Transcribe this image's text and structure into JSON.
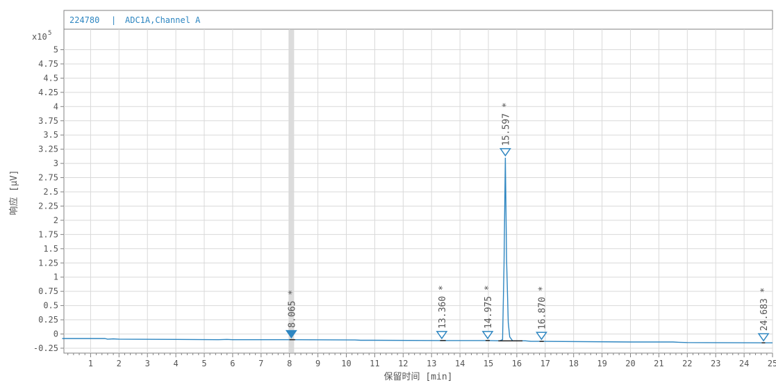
{
  "chart_data": {
    "type": "line",
    "header": {
      "sample_id": "224780",
      "separator": "|",
      "channel": "ADC1A,Channel A"
    },
    "xlabel": "保留时间 [min]",
    "ylabel": "响应 [µV]",
    "y_multiplier": "x10",
    "y_exponent": "5",
    "xlim": [
      0,
      25
    ],
    "ylim": [
      -0.3,
      5.2
    ],
    "x_ticks": [
      1,
      2,
      3,
      4,
      5,
      6,
      7,
      8,
      9,
      10,
      11,
      12,
      13,
      14,
      15,
      16,
      17,
      18,
      19,
      20,
      21,
      22,
      23,
      24,
      25
    ],
    "y_ticks": [
      {
        "v": 5,
        "label": "5"
      },
      {
        "v": 4.75,
        "label": "4.75"
      },
      {
        "v": 4.5,
        "label": "4.5"
      },
      {
        "v": 4.25,
        "label": "4.25"
      },
      {
        "v": 4,
        "label": "4"
      },
      {
        "v": 3.75,
        "label": "3.75"
      },
      {
        "v": 3.5,
        "label": "3.5"
      },
      {
        "v": 3.25,
        "label": "3.25"
      },
      {
        "v": 3,
        "label": "3"
      },
      {
        "v": 2.75,
        "label": "2.75"
      },
      {
        "v": 2.5,
        "label": "2.5"
      },
      {
        "v": 2.25,
        "label": "2.25"
      },
      {
        "v": 2,
        "label": "2"
      },
      {
        "v": 1.75,
        "label": "1.75"
      },
      {
        "v": 1.5,
        "label": "1.5"
      },
      {
        "v": 1.25,
        "label": "1.25"
      },
      {
        "v": 1,
        "label": "1"
      },
      {
        "v": 0.75,
        "label": "0.75"
      },
      {
        "v": 0.5,
        "label": "0.5"
      },
      {
        "v": 0.25,
        "label": "0.25"
      },
      {
        "v": 0,
        "label": "0"
      },
      {
        "v": -0.25,
        "label": "-0.25"
      }
    ],
    "highlight_x": 8.065,
    "series": [
      {
        "color": "#2e86c1",
        "points": [
          [
            0,
            -0.08
          ],
          [
            1.5,
            -0.08
          ],
          [
            1.6,
            -0.09
          ],
          [
            1.8,
            -0.085
          ],
          [
            2,
            -0.09
          ],
          [
            4,
            -0.095
          ],
          [
            5.5,
            -0.1
          ],
          [
            5.8,
            -0.095
          ],
          [
            6,
            -0.1
          ],
          [
            8.0,
            -0.1
          ],
          [
            8.065,
            -0.1
          ],
          [
            10.3,
            -0.105
          ],
          [
            10.5,
            -0.11
          ],
          [
            11,
            -0.11
          ],
          [
            13.36,
            -0.115
          ],
          [
            14.975,
            -0.115
          ],
          [
            15.4,
            -0.12
          ],
          [
            15.5,
            -0.1
          ],
          [
            15.55,
            1.2
          ],
          [
            15.597,
            3.1
          ],
          [
            15.64,
            1.3
          ],
          [
            15.7,
            0.2
          ],
          [
            15.75,
            -0.05
          ],
          [
            15.85,
            -0.12
          ],
          [
            16.3,
            -0.12
          ],
          [
            16.5,
            -0.13
          ],
          [
            16.87,
            -0.13
          ],
          [
            20,
            -0.14
          ],
          [
            21.5,
            -0.14
          ],
          [
            21.7,
            -0.145
          ],
          [
            22,
            -0.15
          ],
          [
            24.683,
            -0.155
          ],
          [
            25,
            -0.155
          ]
        ]
      }
    ],
    "baseline_segments": [
      {
        "x1": 8.0,
        "x2": 8.2,
        "y": -0.1
      },
      {
        "x1": 13.3,
        "x2": 13.5,
        "y": -0.115
      },
      {
        "x1": 14.9,
        "x2": 15.05,
        "y": -0.115
      },
      {
        "x1": 15.35,
        "x2": 16.2,
        "y": -0.12
      },
      {
        "x1": 16.8,
        "x2": 16.95,
        "y": -0.13
      },
      {
        "x1": 24.62,
        "x2": 24.74,
        "y": -0.155
      }
    ],
    "peaks": [
      {
        "rt": 8.065,
        "label": "8.065 *",
        "y": -0.1,
        "filled": true
      },
      {
        "rt": 13.36,
        "label": "13.360 *",
        "y": -0.115,
        "filled": false
      },
      {
        "rt": 14.975,
        "label": "14.975 *",
        "y": -0.115,
        "filled": false
      },
      {
        "rt": 15.597,
        "label": "15.597 *",
        "y": 3.1,
        "filled": false
      },
      {
        "rt": 16.87,
        "label": "16.870 *",
        "y": -0.13,
        "filled": false
      },
      {
        "rt": 24.683,
        "label": "24.683 *",
        "y": -0.155,
        "filled": false
      }
    ],
    "colors": {
      "trace": "#2e86c1",
      "grid": "#d9d9d9",
      "frame": "#808080",
      "highlight": "#dcdcdc",
      "baseline": "#222222"
    }
  }
}
